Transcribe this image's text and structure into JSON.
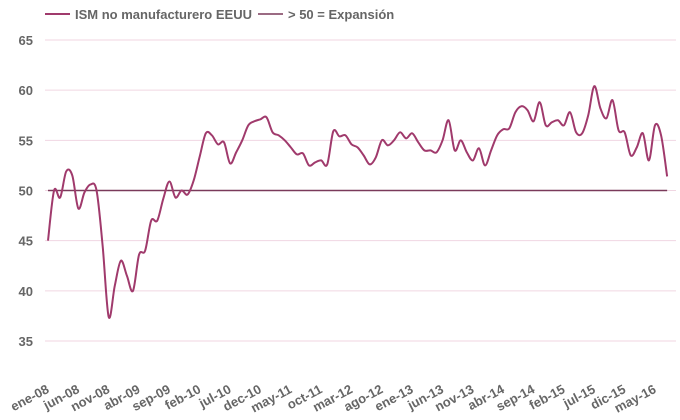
{
  "chart_data": {
    "type": "line",
    "title": "",
    "xlabel": "",
    "ylabel": "",
    "ylim": [
      35,
      65
    ],
    "yticks": [
      35,
      40,
      45,
      50,
      55,
      60,
      65
    ],
    "grid": true,
    "legend_position": "top",
    "x_start": "ene-08",
    "x_frequency": "monthly",
    "xtick_labels": [
      "ene-08",
      "jun-08",
      "nov-08",
      "abr-09",
      "sep-09",
      "feb-10",
      "jul-10",
      "dec-10",
      "may-11",
      "oct-11",
      "mar-12",
      "ago-12",
      "ene-13",
      "jun-13",
      "nov-13",
      "abr-14",
      "sep-14",
      "feb-15",
      "jul-15",
      "dic-15",
      "may-16"
    ],
    "xtick_every_months": 5,
    "series": [
      {
        "name": "ISM no manufacturero EEUU",
        "color": "#a03a6c",
        "values": [
          45.0,
          50.0,
          49.3,
          51.9,
          51.5,
          48.2,
          49.8,
          50.6,
          50.0,
          44.5,
          37.4,
          40.5,
          43.0,
          41.5,
          40.0,
          43.6,
          44.0,
          47.0,
          47.0,
          49.2,
          50.9,
          49.3,
          50.0,
          49.6,
          51.0,
          53.4,
          55.7,
          55.5,
          54.6,
          54.8,
          52.7,
          53.8,
          55.0,
          56.5,
          56.9,
          57.1,
          57.3,
          55.8,
          55.5,
          55.0,
          54.3,
          53.6,
          53.7,
          52.5,
          52.8,
          53.0,
          52.6,
          55.9,
          55.4,
          55.5,
          54.6,
          54.3,
          53.5,
          52.6,
          53.3,
          55.0,
          54.5,
          55.0,
          55.8,
          55.2,
          55.7,
          54.8,
          54.0,
          54.0,
          53.8,
          55.0,
          57.0,
          54.0,
          55.0,
          53.8,
          53.0,
          54.2,
          52.5,
          54.0,
          55.5,
          56.1,
          56.2,
          57.8,
          58.4,
          58.0,
          56.9,
          58.8,
          56.5,
          56.8,
          57.0,
          56.5,
          57.8,
          55.8,
          55.7,
          57.5,
          60.4,
          58.2,
          57.2,
          59.0,
          56.0,
          55.8,
          53.5,
          54.3,
          55.7,
          53.0,
          56.5,
          55.5,
          51.4
        ]
      },
      {
        "name": "> 50 = Expansión",
        "color": "#7a3a5a",
        "constant": 50
      }
    ]
  }
}
